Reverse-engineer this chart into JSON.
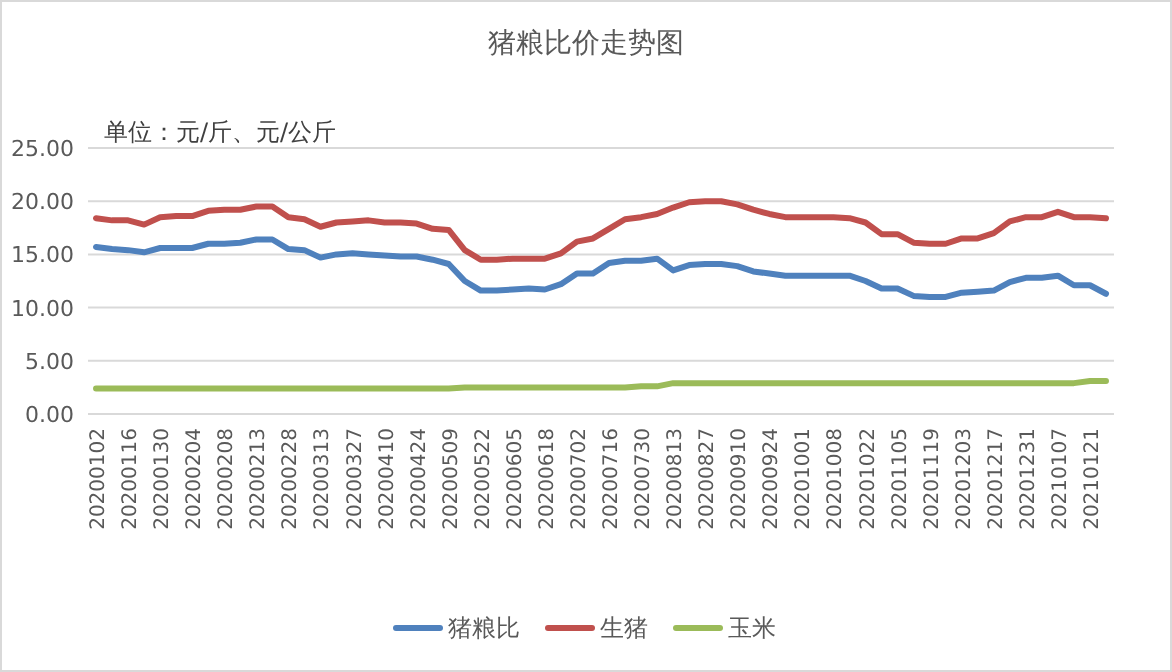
{
  "chart_data": {
    "type": "line",
    "title": "猪粮比价走势图",
    "annotations": [
      "单位：元/斤、元/公斤"
    ],
    "categories": [
      "20200102",
      null,
      "20200116",
      null,
      "20200130",
      null,
      "20200204",
      null,
      "20200208",
      null,
      "20200213",
      null,
      "20200228",
      null,
      "20200313",
      null,
      "20200327",
      null,
      "20200410",
      null,
      "20200424",
      null,
      "20200509",
      null,
      "20200522",
      null,
      "20200605",
      null,
      "20200618",
      null,
      "20200702",
      null,
      "20200716",
      null,
      "20200730",
      null,
      "20200813",
      null,
      "20200827",
      null,
      "20200910",
      null,
      "20200924",
      null,
      "20201001",
      null,
      "20201008",
      null,
      "20201022",
      null,
      "20201105",
      null,
      "20201119",
      null,
      "20201203",
      null,
      "20201217",
      null,
      "20201231",
      null,
      "20210107",
      null,
      "20210121",
      null
    ],
    "series": [
      {
        "name": "猪粮比",
        "color": "#4f81bd",
        "values": [
          15.7,
          15.5,
          15.4,
          15.2,
          15.6,
          15.6,
          15.6,
          16.0,
          16.0,
          16.1,
          16.4,
          16.4,
          15.5,
          15.4,
          14.7,
          15.0,
          15.1,
          15.0,
          14.9,
          14.8,
          14.8,
          14.5,
          14.1,
          12.5,
          11.6,
          11.6,
          11.7,
          11.8,
          11.7,
          12.2,
          13.2,
          13.2,
          14.2,
          14.4,
          14.4,
          14.6,
          13.5,
          14.0,
          14.1,
          14.1,
          13.9,
          13.4,
          13.2,
          13.0,
          13.0,
          13.0,
          13.0,
          13.0,
          12.5,
          11.8,
          11.8,
          11.1,
          11.0,
          11.0,
          11.4,
          11.5,
          11.6,
          12.4,
          12.8,
          12.8,
          13.0,
          12.1,
          12.1,
          11.3
        ]
      },
      {
        "name": "生猪",
        "color": "#c0504d",
        "values": [
          18.4,
          18.2,
          18.2,
          17.8,
          18.5,
          18.6,
          18.6,
          19.1,
          19.2,
          19.2,
          19.5,
          19.5,
          18.5,
          18.3,
          17.6,
          18.0,
          18.1,
          18.2,
          18.0,
          18.0,
          17.9,
          17.4,
          17.3,
          15.4,
          14.5,
          14.5,
          14.6,
          14.6,
          14.6,
          15.1,
          16.2,
          16.5,
          17.4,
          18.3,
          18.5,
          18.8,
          19.4,
          19.9,
          20.0,
          20.0,
          19.7,
          19.2,
          18.8,
          18.5,
          18.5,
          18.5,
          18.5,
          18.4,
          18.0,
          16.9,
          16.9,
          16.1,
          16.0,
          16.0,
          16.5,
          16.5,
          17.0,
          18.1,
          18.5,
          18.5,
          19.0,
          18.5,
          18.5,
          18.4
        ]
      },
      {
        "name": "玉米",
        "color": "#9bbb59",
        "values": [
          2.4,
          2.4,
          2.4,
          2.4,
          2.4,
          2.4,
          2.4,
          2.4,
          2.4,
          2.4,
          2.4,
          2.4,
          2.4,
          2.4,
          2.4,
          2.4,
          2.4,
          2.4,
          2.4,
          2.4,
          2.4,
          2.4,
          2.4,
          2.5,
          2.5,
          2.5,
          2.5,
          2.5,
          2.5,
          2.5,
          2.5,
          2.5,
          2.5,
          2.5,
          2.6,
          2.6,
          2.9,
          2.9,
          2.9,
          2.9,
          2.9,
          2.9,
          2.9,
          2.9,
          2.9,
          2.9,
          2.9,
          2.9,
          2.9,
          2.9,
          2.9,
          2.9,
          2.9,
          2.9,
          2.9,
          2.9,
          2.9,
          2.9,
          2.9,
          2.9,
          2.9,
          2.9,
          3.1,
          3.1
        ]
      }
    ],
    "ylim": [
      0,
      25
    ],
    "yticks": [
      {
        "value": 0,
        "label": "0.00"
      },
      {
        "value": 5,
        "label": "5.00"
      },
      {
        "value": 10,
        "label": "10.00"
      },
      {
        "value": 15,
        "label": "15.00"
      },
      {
        "value": 20,
        "label": "20.00"
      },
      {
        "value": 25,
        "label": "25.00"
      }
    ],
    "grid": "y",
    "legend": "bottom",
    "line_style": "solid",
    "marker": "none"
  }
}
